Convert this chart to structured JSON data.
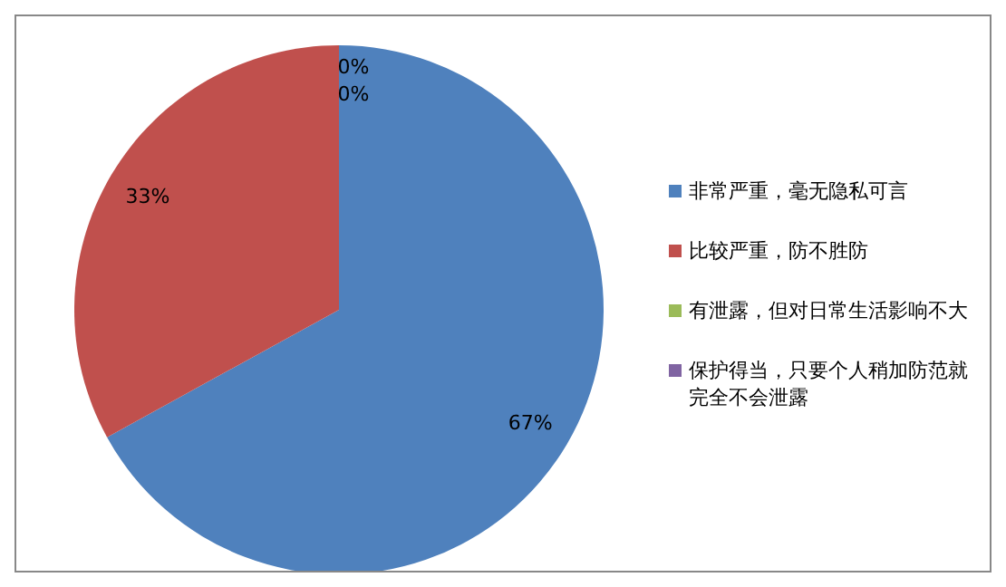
{
  "chart_data": {
    "type": "pie",
    "categories": [
      "非常严重，毫无隐私可言",
      "比较严重，防不胜防",
      "有泄露，但对日常生活影响不大",
      "保护得当，只要个人稍加防范就完全不会泄露"
    ],
    "values": [
      67,
      33,
      0,
      0
    ],
    "colors": [
      "#4f81bd",
      "#c0504d",
      "#9bbb59",
      "#8064a2"
    ],
    "value_labels": [
      "67%",
      "33%",
      "0%",
      "0%"
    ],
    "legend": "right"
  }
}
